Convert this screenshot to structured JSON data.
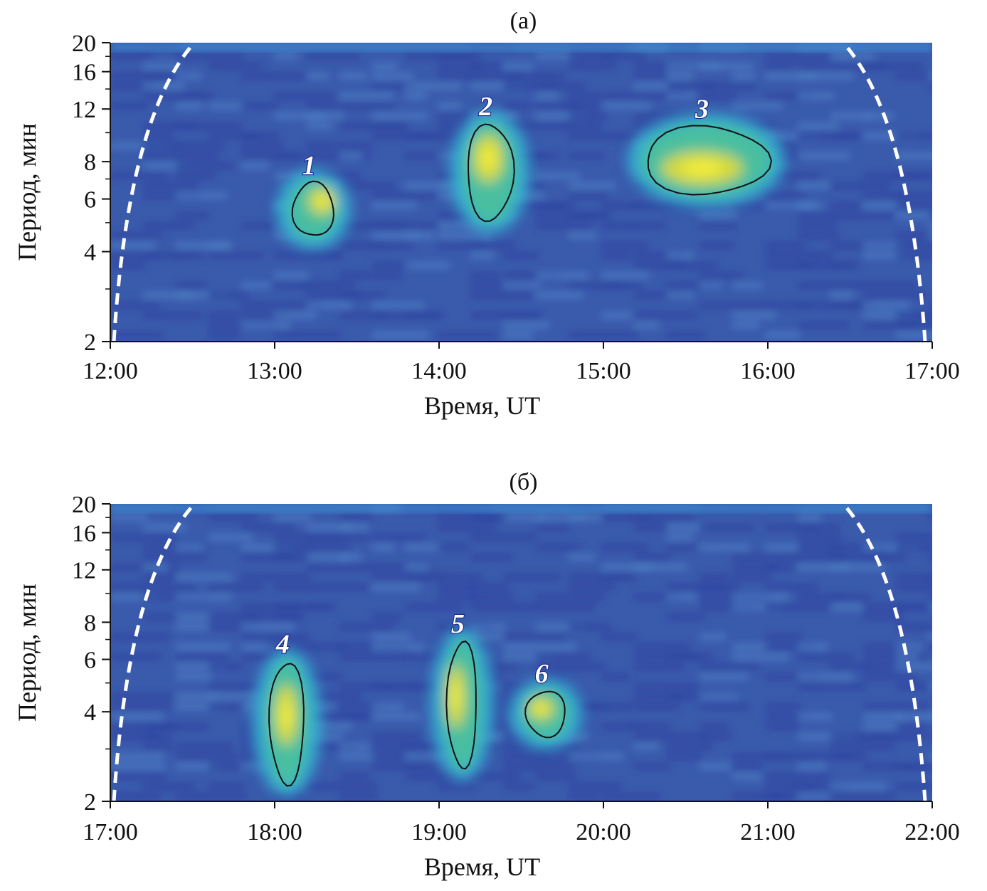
{
  "chart_data": [
    {
      "type": "heatmap",
      "title": "(а)",
      "xlabel": "Время, UT",
      "ylabel": "Период, мин",
      "x_ticks": [
        "12:00",
        "13:00",
        "14:00",
        "15:00",
        "16:00",
        "17:00"
      ],
      "xlim_hours": [
        12,
        17
      ],
      "y_ticks": [
        "2",
        "4",
        "6",
        "8",
        "12",
        "16",
        "20"
      ],
      "ylim_min": [
        2,
        20
      ],
      "y_scale": "log",
      "cone_of_influence": true,
      "regions": [
        {
          "label": "1",
          "time_hours": [
            13.11,
            13.36
          ],
          "period_min": [
            4.5,
            6.8
          ],
          "peak_time_hours": 13.29,
          "peak_period_min": 5.9
        },
        {
          "label": "2",
          "time_hours": [
            14.17,
            14.45
          ],
          "period_min": [
            5.1,
            10.7
          ],
          "peak_time_hours": 14.3,
          "peak_period_min": 8.2
        },
        {
          "label": "3",
          "time_hours": [
            15.25,
            16.0
          ],
          "period_min": [
            6.2,
            10.5
          ],
          "peak_time_hours": 15.6,
          "peak_period_min": 7.6
        }
      ]
    },
    {
      "type": "heatmap",
      "title": "(б)",
      "xlabel": "Время, UT",
      "ylabel": "Период, мин",
      "x_ticks": [
        "17:00",
        "18:00",
        "19:00",
        "20:00",
        "21:00",
        "22:00"
      ],
      "xlim_hours": [
        17,
        22
      ],
      "y_ticks": [
        "2",
        "4",
        "6",
        "8",
        "12",
        "16",
        "20"
      ],
      "ylim_min": [
        2,
        20
      ],
      "y_scale": "log",
      "cone_of_influence": true,
      "regions": [
        {
          "label": "4",
          "time_hours": [
            17.97,
            18.18
          ],
          "period_min": [
            2.3,
            5.9
          ],
          "peak_time_hours": 18.07,
          "peak_period_min": 3.9
        },
        {
          "label": "5",
          "time_hours": [
            19.05,
            19.23
          ],
          "period_min": [
            2.6,
            6.9
          ],
          "peak_time_hours": 19.1,
          "peak_period_min": 4.5
        },
        {
          "label": "6",
          "time_hours": [
            19.53,
            19.77
          ],
          "period_min": [
            3.3,
            4.7
          ],
          "peak_time_hours": 19.62,
          "peak_period_min": 4.1
        }
      ]
    }
  ]
}
